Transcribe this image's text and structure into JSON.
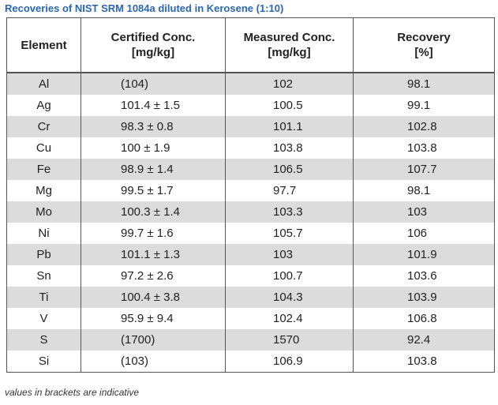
{
  "title": "Recoveries of NIST SRM 1084a diluted in Kerosene (1:10)",
  "table": {
    "header": [
      [
        "Element"
      ],
      [
        "Certified Conc.",
        "[mg/kg]"
      ],
      [
        "Measured Conc.",
        "[mg/kg]"
      ],
      [
        "Recovery",
        "[%]"
      ]
    ],
    "rows": [
      [
        "Al",
        "(104)",
        "102",
        "98.1"
      ],
      [
        "Ag",
        "101.4 ± 1.5",
        "100.5",
        "99.1"
      ],
      [
        "Cr",
        "98.3 ± 0.8",
        "101.1",
        "102.8"
      ],
      [
        "Cu",
        "100 ± 1.9",
        "103.8",
        "103.8"
      ],
      [
        "Fe",
        "98.9 ± 1.4",
        "106.5",
        "107.7"
      ],
      [
        "Mg",
        "99.5 ± 1.7",
        "97.7",
        "98.1"
      ],
      [
        "Mo",
        "100.3 ± 1.4",
        "103.3",
        "103"
      ],
      [
        "Ni",
        "99.7 ± 1.6",
        "105.7",
        "106"
      ],
      [
        "Pb",
        "101.1 ± 1.3",
        "103",
        "101.9"
      ],
      [
        "Sn",
        "97.2 ± 2.6",
        "100.7",
        "103.6"
      ],
      [
        "Ti",
        "100.4 ± 3.8",
        "104.3",
        "103.9"
      ],
      [
        "V",
        "95.9 ± 9.4",
        "102.4",
        "106.8"
      ],
      [
        "S",
        "(1700)",
        "1570",
        "92.4"
      ],
      [
        "Si",
        "(103)",
        "106.9",
        "103.8"
      ]
    ]
  },
  "footnote": "values in brackets are indicative"
}
